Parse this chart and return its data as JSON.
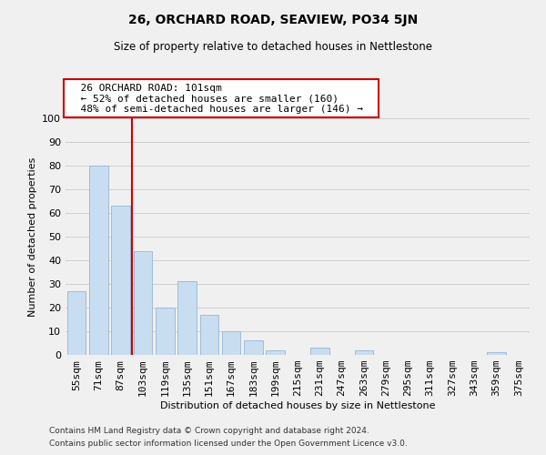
{
  "title": "26, ORCHARD ROAD, SEAVIEW, PO34 5JN",
  "subtitle": "Size of property relative to detached houses in Nettlestone",
  "xlabel": "Distribution of detached houses by size in Nettlestone",
  "ylabel": "Number of detached properties",
  "footer_line1": "Contains HM Land Registry data © Crown copyright and database right 2024.",
  "footer_line2": "Contains public sector information licensed under the Open Government Licence v3.0.",
  "bar_labels": [
    "55sqm",
    "71sqm",
    "87sqm",
    "103sqm",
    "119sqm",
    "135sqm",
    "151sqm",
    "167sqm",
    "183sqm",
    "199sqm",
    "215sqm",
    "231sqm",
    "247sqm",
    "263sqm",
    "279sqm",
    "295sqm",
    "311sqm",
    "327sqm",
    "343sqm",
    "359sqm",
    "375sqm"
  ],
  "bar_values": [
    27,
    80,
    63,
    44,
    20,
    31,
    17,
    10,
    6,
    2,
    0,
    3,
    0,
    2,
    0,
    0,
    0,
    0,
    0,
    1,
    0
  ],
  "bar_color": "#c9ddf0",
  "bar_edge_color": "#a0bcd8",
  "grid_color": "#d0d0d0",
  "background_color": "#f0f0f0",
  "vline_color": "#cc0000",
  "annotation_title": "26 ORCHARD ROAD: 101sqm",
  "annotation_line1": "← 52% of detached houses are smaller (160)",
  "annotation_line2": "48% of semi-detached houses are larger (146) →",
  "annotation_box_color": "#ffffff",
  "annotation_box_edge": "#cc0000",
  "ylim": [
    0,
    100
  ],
  "yticks": [
    0,
    10,
    20,
    30,
    40,
    50,
    60,
    70,
    80,
    90,
    100
  ]
}
